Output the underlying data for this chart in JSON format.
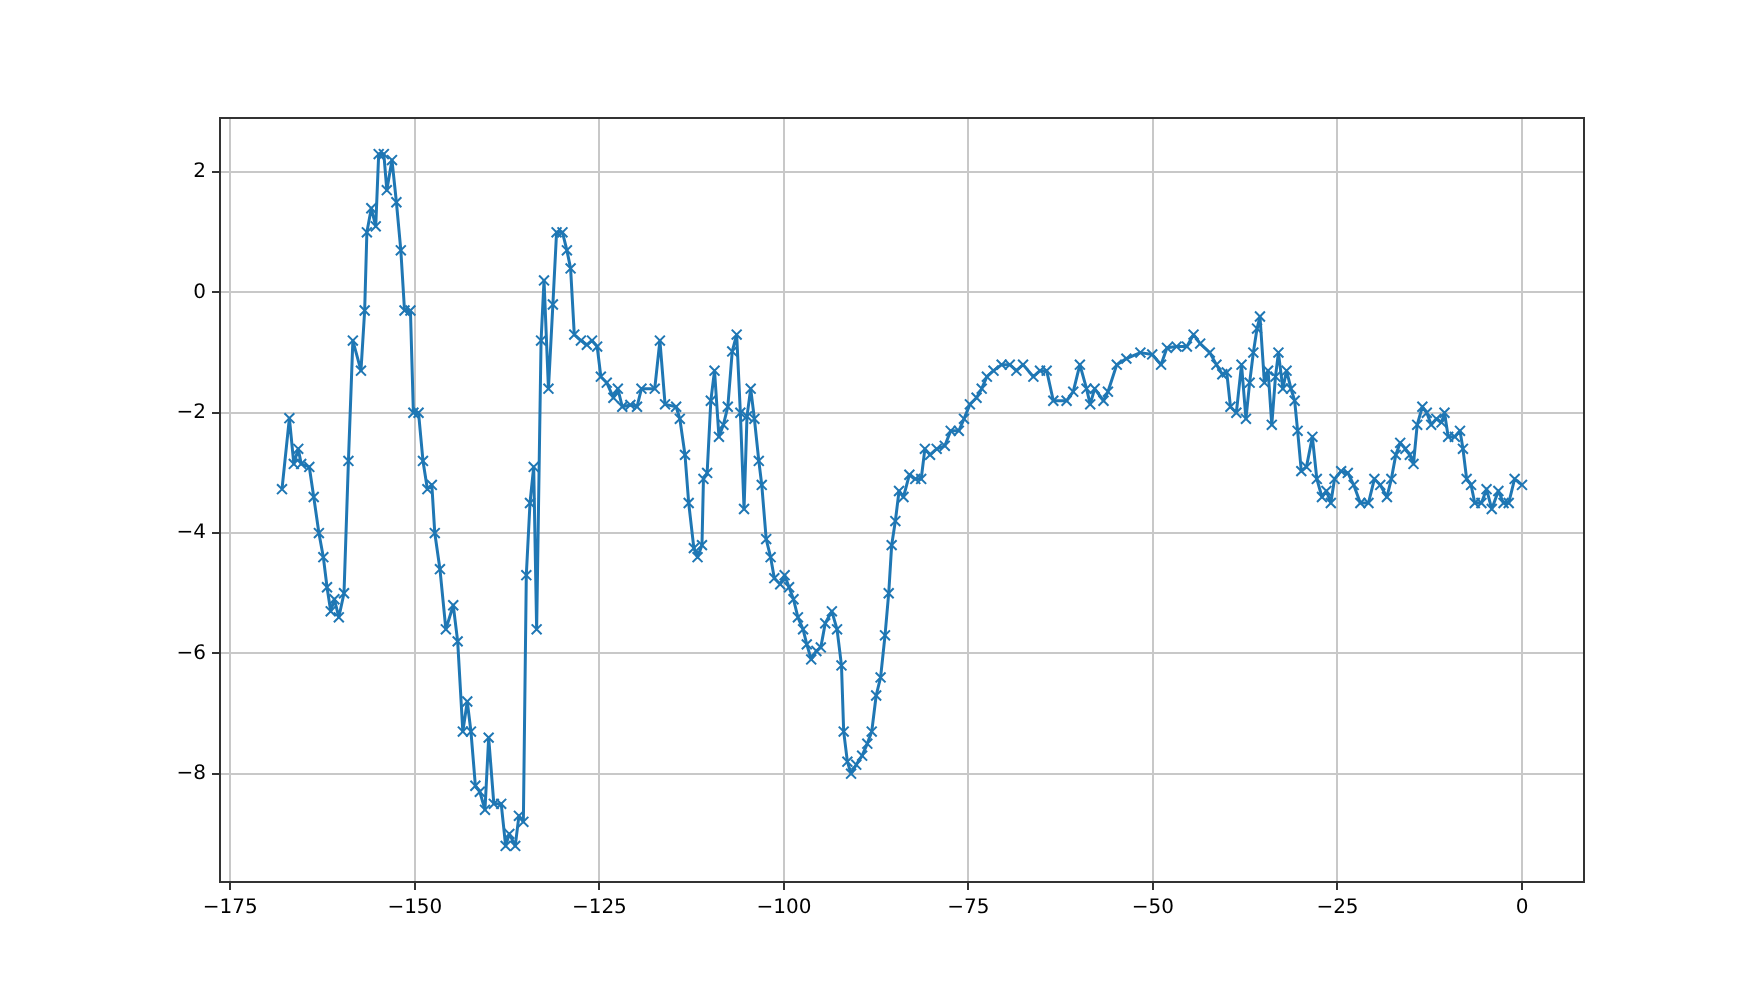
{
  "chart_data": {
    "type": "line",
    "xlim": [
      -176.4,
      8.4
    ],
    "ylim": [
      -9.8,
      2.9
    ],
    "xticks": [
      -175,
      -150,
      -125,
      -100,
      -75,
      -50,
      -25,
      0
    ],
    "yticks": [
      -8,
      -6,
      -4,
      -2,
      0,
      2
    ],
    "grid": true,
    "legend": false,
    "marker": "cross",
    "line_style": "solid",
    "series": [
      {
        "color": "#1f77b4",
        "x": [
          -168.0,
          -167.0,
          -166.4,
          -165.8,
          -165.4,
          -164.3,
          -163.7,
          -163.0,
          -162.4,
          -161.9,
          -161.4,
          -160.9,
          -160.3,
          -159.6,
          -159.0,
          -158.4,
          -157.3,
          -156.8,
          -156.5,
          -155.9,
          -155.3,
          -154.9,
          -154.2,
          -153.8,
          -153.1,
          -152.5,
          -151.9,
          -151.4,
          -150.6,
          -150.2,
          -149.5,
          -148.9,
          -148.3,
          -147.7,
          -147.3,
          -146.6,
          -145.8,
          -144.8,
          -144.2,
          -143.5,
          -142.9,
          -142.4,
          -141.8,
          -141.2,
          -140.5,
          -140.0,
          -139.3,
          -138.3,
          -137.7,
          -137.2,
          -136.4,
          -135.9,
          -135.3,
          -134.9,
          -134.4,
          -133.9,
          -133.5,
          -132.9,
          -132.5,
          -131.9,
          -131.3,
          -130.8,
          -130.0,
          -129.4,
          -128.9,
          -128.4,
          -127.5,
          -126.7,
          -126.0,
          -125.3,
          -124.8,
          -124.0,
          -123.1,
          -122.5,
          -121.9,
          -120.8,
          -119.9,
          -119.3,
          -117.5,
          -116.8,
          -116.1,
          -114.6,
          -114.1,
          -113.4,
          -112.9,
          -112.2,
          -111.7,
          -111.1,
          -110.9,
          -110.4,
          -109.9,
          -109.4,
          -108.8,
          -108.2,
          -107.6,
          -107.0,
          -106.4,
          -105.9,
          -105.4,
          -105.0,
          -104.5,
          -104.0,
          -103.4,
          -103.0,
          -102.4,
          -101.8,
          -101.3,
          -100.5,
          -99.9,
          -99.3,
          -98.7,
          -98.1,
          -97.4,
          -96.9,
          -96.3,
          -95.6,
          -95.0,
          -94.4,
          -93.5,
          -92.8,
          -92.2,
          -91.9,
          -91.4,
          -90.9,
          -90.2,
          -89.4,
          -88.7,
          -88.1,
          -87.5,
          -86.9,
          -86.3,
          -85.8,
          -85.4,
          -84.9,
          -84.4,
          -83.8,
          -83.0,
          -82.2,
          -81.4,
          -80.9,
          -80.2,
          -79.3,
          -78.2,
          -77.4,
          -76.3,
          -75.6,
          -74.8,
          -73.9,
          -73.2,
          -72.5,
          -71.6,
          -70.5,
          -69.4,
          -68.5,
          -67.6,
          -66.2,
          -65.3,
          -64.4,
          -63.5,
          -61.7,
          -60.8,
          -59.9,
          -59.0,
          -58.5,
          -57.9,
          -56.7,
          -56.1,
          -54.9,
          -53.6,
          -51.7,
          -50.1,
          -48.9,
          -48.1,
          -46.8,
          -45.4,
          -44.5,
          -43.6,
          -42.3,
          -41.4,
          -40.6,
          -40.0,
          -39.5,
          -38.7,
          -38.0,
          -37.4,
          -36.9,
          -36.4,
          -35.9,
          -35.5,
          -34.9,
          -34.4,
          -33.9,
          -33.4,
          -33.0,
          -32.4,
          -31.9,
          -31.3,
          -30.8,
          -30.4,
          -29.9,
          -29.2,
          -28.4,
          -27.8,
          -27.1,
          -26.5,
          -25.9,
          -25.4,
          -24.5,
          -23.6,
          -22.8,
          -21.9,
          -20.8,
          -20.0,
          -19.2,
          -18.3,
          -17.7,
          -17.1,
          -16.5,
          -15.8,
          -15.2,
          -14.7,
          -14.2,
          -13.5,
          -12.9,
          -12.3,
          -11.6,
          -10.9,
          -10.5,
          -10.0,
          -9.1,
          -8.4,
          -8.0,
          -7.5,
          -6.9,
          -6.4,
          -5.5,
          -4.8,
          -4.1,
          -3.2,
          -2.5,
          -1.8,
          -1.0,
          0
        ],
        "values": [
          -3.27,
          -2.09,
          -2.85,
          -2.6,
          -2.85,
          -2.9,
          -3.4,
          -4.0,
          -4.4,
          -4.9,
          -5.3,
          -5.1,
          -5.4,
          -5.0,
          -2.8,
          -0.8,
          -1.3,
          -0.3,
          1.0,
          1.4,
          1.1,
          2.3,
          2.3,
          1.7,
          2.2,
          1.5,
          0.7,
          -0.3,
          -0.3,
          -2.0,
          -2.0,
          -2.8,
          -3.27,
          -3.2,
          -4.0,
          -4.6,
          -5.6,
          -5.2,
          -5.8,
          -7.3,
          -6.8,
          -7.3,
          -8.2,
          -8.3,
          -8.6,
          -7.4,
          -8.5,
          -8.5,
          -9.2,
          -9.0,
          -9.2,
          -8.7,
          -8.8,
          -4.7,
          -3.5,
          -2.9,
          -5.6,
          -0.8,
          0.2,
          -1.6,
          -0.2,
          1.0,
          1.0,
          0.7,
          0.4,
          -0.7,
          -0.8,
          -0.87,
          -0.8,
          -0.9,
          -1.4,
          -1.5,
          -1.75,
          -1.6,
          -1.9,
          -1.87,
          -1.9,
          -1.6,
          -1.6,
          -0.8,
          -1.86,
          -1.9,
          -2.1,
          -2.7,
          -3.5,
          -4.25,
          -4.4,
          -4.2,
          -3.1,
          -3.0,
          -1.8,
          -1.3,
          -2.4,
          -2.2,
          -1.9,
          -0.98,
          -0.7,
          -2.0,
          -3.6,
          -2.06,
          -1.6,
          -2.1,
          -2.8,
          -3.2,
          -4.1,
          -4.4,
          -4.75,
          -4.85,
          -4.7,
          -4.9,
          -5.1,
          -5.4,
          -5.6,
          -5.85,
          -6.1,
          -5.96,
          -5.9,
          -5.5,
          -5.3,
          -5.6,
          -6.2,
          -7.3,
          -7.8,
          -8.0,
          -7.85,
          -7.7,
          -7.5,
          -7.3,
          -6.7,
          -6.4,
          -5.7,
          -5.0,
          -4.2,
          -3.8,
          -3.3,
          -3.4,
          -3.03,
          -3.1,
          -3.1,
          -2.6,
          -2.7,
          -2.6,
          -2.55,
          -2.3,
          -2.3,
          -2.1,
          -1.86,
          -1.75,
          -1.6,
          -1.4,
          -1.3,
          -1.2,
          -1.2,
          -1.3,
          -1.2,
          -1.4,
          -1.3,
          -1.3,
          -1.8,
          -1.8,
          -1.65,
          -1.2,
          -1.6,
          -1.86,
          -1.6,
          -1.8,
          -1.65,
          -1.2,
          -1.1,
          -1.0,
          -1.03,
          -1.2,
          -0.92,
          -0.9,
          -0.9,
          -0.7,
          -0.85,
          -1.0,
          -1.2,
          -1.36,
          -1.33,
          -1.9,
          -2.0,
          -1.2,
          -2.1,
          -1.5,
          -1.0,
          -0.6,
          -0.4,
          -1.5,
          -1.3,
          -2.2,
          -1.4,
          -1.0,
          -1.6,
          -1.3,
          -1.6,
          -1.8,
          -2.3,
          -2.97,
          -2.9,
          -2.4,
          -3.1,
          -3.4,
          -3.3,
          -3.5,
          -3.1,
          -2.97,
          -3.0,
          -3.2,
          -3.5,
          -3.5,
          -3.1,
          -3.2,
          -3.4,
          -3.1,
          -2.7,
          -2.5,
          -2.6,
          -2.7,
          -2.85,
          -2.2,
          -1.9,
          -2.0,
          -2.2,
          -2.1,
          -2.16,
          -2.0,
          -2.4,
          -2.4,
          -2.3,
          -2.6,
          -3.1,
          -3.2,
          -3.5,
          -3.5,
          -3.27,
          -3.6,
          -3.3,
          -3.5,
          -3.5,
          -3.1,
          -3.2
        ]
      }
    ]
  }
}
